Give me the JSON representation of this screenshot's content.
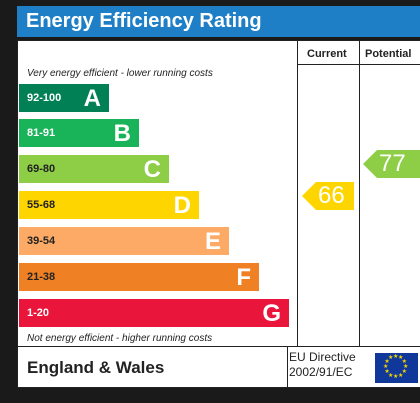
{
  "header": {
    "title": "Energy Efficiency Rating"
  },
  "columns": {
    "current": "Current",
    "potential": "Potential"
  },
  "notes": {
    "top": "Very energy efficient - lower running costs",
    "bottom": "Not energy efficient - higher running costs"
  },
  "bands": [
    {
      "range": "92-100",
      "letter": "A",
      "color": "#008054"
    },
    {
      "range": "81-91",
      "letter": "B",
      "color": "#19b459"
    },
    {
      "range": "69-80",
      "letter": "C",
      "color": "#8dce46"
    },
    {
      "range": "55-68",
      "letter": "D",
      "color": "#ffd500"
    },
    {
      "range": "39-54",
      "letter": "E",
      "color": "#fcaa65"
    },
    {
      "range": "21-38",
      "letter": "F",
      "color": "#ef8023"
    },
    {
      "range": "1-20",
      "letter": "G",
      "color": "#e9153b"
    }
  ],
  "ratings": {
    "current": {
      "value": "66",
      "color": "#ffd500"
    },
    "potential": {
      "value": "77",
      "color": "#8dce46"
    }
  },
  "footer": {
    "region": "England & Wales",
    "directive_line1": "EU Directive",
    "directive_line2": "2002/91/EC"
  }
}
